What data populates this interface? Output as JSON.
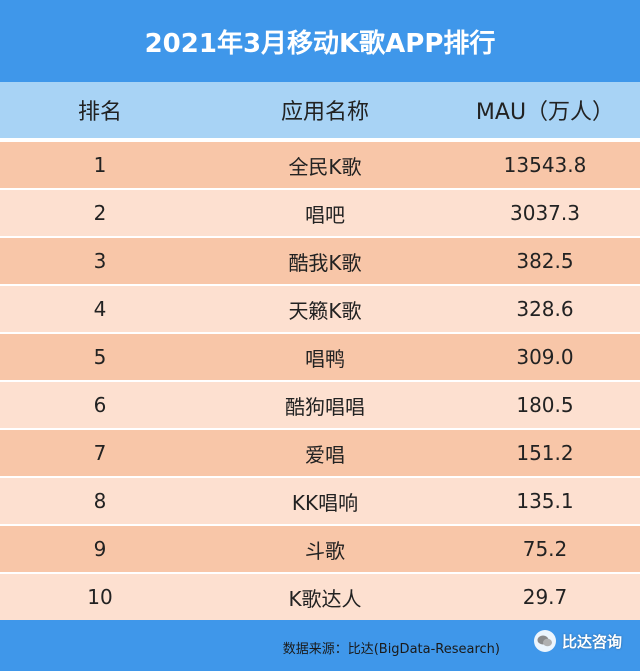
{
  "title": "2021年3月移动K歌APP排行",
  "columns": {
    "rank": "排名",
    "name": "应用名称",
    "mau": "MAU（万人）"
  },
  "rows": [
    {
      "rank": "1",
      "name": "全民K歌",
      "mau": "13543.8"
    },
    {
      "rank": "2",
      "name": "唱吧",
      "mau": "3037.3"
    },
    {
      "rank": "3",
      "name": "酷我K歌",
      "mau": "382.5"
    },
    {
      "rank": "4",
      "name": "天籁K歌",
      "mau": "328.6"
    },
    {
      "rank": "5",
      "name": "唱鸭",
      "mau": "309.0"
    },
    {
      "rank": "6",
      "name": "酷狗唱唱",
      "mau": "180.5"
    },
    {
      "rank": "7",
      "name": "爱唱",
      "mau": "151.2"
    },
    {
      "rank": "8",
      "name": "KK唱响",
      "mau": "135.1"
    },
    {
      "rank": "9",
      "name": "斗歌",
      "mau": "75.2"
    },
    {
      "rank": "10",
      "name": "K歌达人",
      "mau": "29.7"
    }
  ],
  "footer": {
    "source": "数据来源：比达(BigData-Research)"
  },
  "watermark": {
    "text": "比达咨询",
    "icon": "wechat-icon"
  },
  "colors": {
    "title_bg": "#3f97ea",
    "header_bg": "#a8d3f5",
    "row_odd": "#f8c6a8",
    "row_even": "#fde0d0"
  }
}
